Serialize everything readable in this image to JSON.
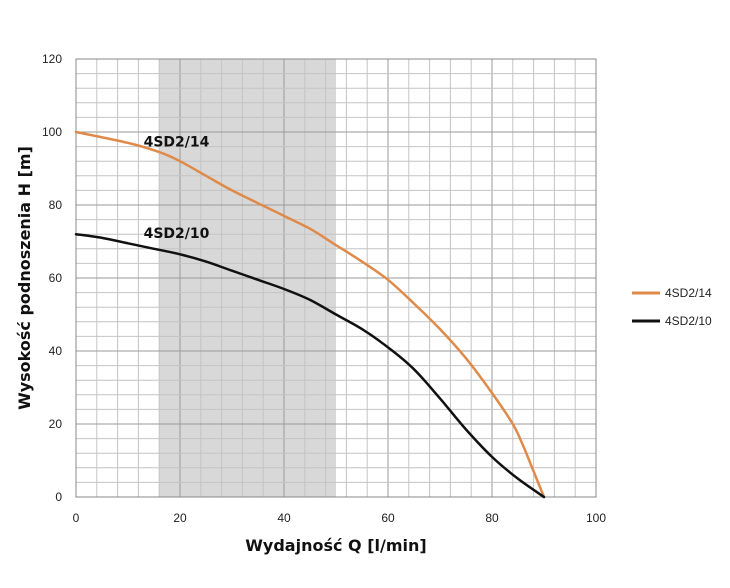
{
  "chart_data": {
    "type": "line",
    "title": "",
    "xlabel": "Wydajność Q [l/min]",
    "ylabel": "Wysokość podnoszenia H [m]",
    "xlim": [
      0,
      100
    ],
    "ylim": [
      0,
      120
    ],
    "x_ticks": [
      0,
      20,
      40,
      60,
      80,
      100
    ],
    "y_ticks": [
      0,
      20,
      40,
      60,
      80,
      100,
      120
    ],
    "x_minor_step": 4,
    "y_minor_step": 4,
    "grid": true,
    "recommended_range": {
      "x_from": 16,
      "x_to": 50
    },
    "legend_position": "right",
    "series": [
      {
        "name": "4SD2/14",
        "color": "#e08a4a",
        "inline_label": "4SD2/14",
        "label_at": [
          13,
          96
        ],
        "x": [
          0,
          10,
          16,
          20,
          25,
          30,
          35,
          40,
          45,
          50,
          55,
          60,
          65,
          70,
          75,
          80,
          84,
          86,
          88,
          90
        ],
        "y": [
          100,
          97,
          94.5,
          92,
          88,
          84,
          80.5,
          77,
          73.5,
          69,
          64.5,
          59.5,
          53,
          46,
          38,
          28.5,
          20,
          14,
          7,
          0
        ]
      },
      {
        "name": "4SD2/10",
        "color": "#111111",
        "inline_label": "4SD2/10",
        "label_at": [
          13,
          71
        ],
        "x": [
          0,
          5,
          10,
          15,
          20,
          25,
          30,
          35,
          40,
          45,
          50,
          55,
          60,
          65,
          70,
          75,
          80,
          85,
          90
        ],
        "y": [
          72,
          71,
          69.5,
          68,
          66.5,
          64.5,
          62,
          59.5,
          57,
          54,
          50,
          46,
          41,
          35,
          27,
          18.5,
          11,
          5,
          0
        ]
      }
    ]
  }
}
